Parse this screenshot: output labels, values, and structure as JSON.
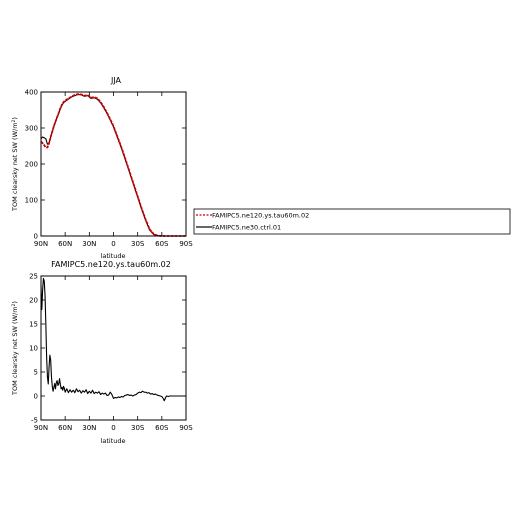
{
  "chart_data": [
    {
      "type": "line",
      "title": "JJA",
      "xlabel": "latitude",
      "ylabel": "TOM clearsky net SW (W/m",
      "ylabel_sup": "2",
      "ylabel_close": ")",
      "xlim": [
        90,
        -90
      ],
      "ylim": [
        0,
        400
      ],
      "xticks": [
        90,
        60,
        30,
        0,
        -30,
        -60,
        -90
      ],
      "xtick_labels": [
        "90N",
        "60N",
        "30N",
        "0",
        "30S",
        "60S",
        "90S"
      ],
      "yticks": [
        0,
        100,
        200,
        300,
        400
      ],
      "ytick_labels": [
        "0",
        "100",
        "200",
        "300",
        "400"
      ],
      "legend_position": "right",
      "series": [
        {
          "name": "FAMIPC5.ne120.ys.tau60m.02",
          "color": "#cc0000",
          "dash": "dashed",
          "x": [
            90,
            88,
            86,
            84,
            82,
            80,
            78,
            76,
            74,
            72,
            70,
            68,
            66,
            64,
            62,
            60,
            56,
            52,
            48,
            44,
            40,
            36,
            32,
            30,
            28,
            24,
            20,
            16,
            12,
            8,
            4,
            0,
            -5,
            -10,
            -15,
            -20,
            -25,
            -30,
            -35,
            -40,
            -45,
            -50,
            -55,
            -60,
            -62,
            -64,
            -66,
            -68,
            -70,
            -74,
            -78,
            -82,
            -86,
            -90
          ],
          "y": [
            262,
            258,
            252,
            246,
            246,
            258,
            275,
            290,
            305,
            318,
            330,
            342,
            355,
            365,
            372,
            376,
            382,
            387,
            392,
            394,
            393,
            390,
            391,
            388,
            384,
            386,
            382,
            372,
            358,
            342,
            324,
            305,
            275,
            245,
            212,
            178,
            144,
            110,
            76,
            45,
            18,
            5,
            1,
            0,
            0,
            0,
            0,
            0,
            0,
            0,
            0,
            0,
            0,
            0
          ]
        },
        {
          "name": "FAMIPC5.ne30.ctrl.01",
          "color": "#000000",
          "dash": "solid",
          "x": [
            90,
            88,
            86,
            84,
            82,
            80,
            78,
            76,
            74,
            72,
            70,
            68,
            66,
            64,
            62,
            60,
            56,
            52,
            48,
            44,
            40,
            36,
            32,
            30,
            28,
            24,
            20,
            16,
            12,
            8,
            4,
            0,
            -5,
            -10,
            -15,
            -20,
            -25,
            -30,
            -35,
            -40,
            -45,
            -50,
            -55,
            -60,
            -62,
            -64,
            -66,
            -68,
            -70,
            -74,
            -78,
            -82,
            -86,
            -90
          ],
          "y": [
            270,
            275,
            273,
            270,
            255,
            258,
            275,
            290,
            305,
            318,
            330,
            341,
            353,
            363,
            370,
            374,
            380,
            386,
            390,
            393,
            392,
            388,
            390,
            386,
            382,
            384,
            380,
            370,
            356,
            340,
            322,
            303,
            273,
            243,
            210,
            176,
            142,
            108,
            74,
            43,
            16,
            4,
            1,
            0,
            0,
            0,
            0,
            0,
            0,
            0,
            0,
            0,
            0,
            0
          ]
        }
      ]
    },
    {
      "type": "line",
      "title": "FAMIPC5.ne120.ys.tau60m.02",
      "xlabel": "latitude",
      "ylabel": "TOM clearsky net SW (W/m",
      "ylabel_sup": "2",
      "ylabel_close": ")",
      "xlim": [
        90,
        -90
      ],
      "ylim": [
        -5,
        25
      ],
      "xticks": [
        90,
        60,
        30,
        0,
        -30,
        -60,
        -90
      ],
      "xtick_labels": [
        "90N",
        "60N",
        "30N",
        "0",
        "30S",
        "60S",
        "90S"
      ],
      "yticks": [
        -5,
        0,
        5,
        10,
        15,
        20,
        25
      ],
      "ytick_labels": [
        "-5",
        "0",
        "5",
        "10",
        "15",
        "20",
        "25"
      ],
      "series": [
        {
          "color": "#000000",
          "dash": "solid",
          "x": [
            90,
            89,
            88,
            87,
            86,
            85,
            84,
            83,
            82,
            81,
            80,
            79,
            78,
            77,
            76,
            75,
            74,
            73,
            72,
            71,
            70,
            69,
            68,
            67,
            66,
            65,
            64,
            63,
            62,
            61,
            60,
            58,
            56,
            54,
            52,
            50,
            48,
            46,
            44,
            42,
            40,
            38,
            36,
            34,
            32,
            30,
            28,
            26,
            24,
            22,
            20,
            18,
            16,
            14,
            12,
            10,
            8,
            6,
            4,
            2,
            0,
            -2,
            -4,
            -6,
            -8,
            -10,
            -12,
            -14,
            -16,
            -18,
            -20,
            -22,
            -24,
            -26,
            -28,
            -30,
            -32,
            -34,
            -36,
            -38,
            -40,
            -42,
            -44,
            -46,
            -48,
            -50,
            -52,
            -54,
            -56,
            -58,
            -60,
            -62,
            -63,
            -64,
            -65,
            -66,
            -68,
            -70,
            -75,
            -80,
            -85,
            -90
          ],
          "y": [
            23,
            18,
            22,
            24.5,
            24,
            21,
            15,
            8,
            4,
            2.5,
            6,
            8.5,
            7.5,
            4,
            2,
            1,
            1.8,
            2.6,
            1.5,
            2.8,
            3.2,
            2.2,
            2.5,
            3.6,
            2.4,
            1.5,
            1.8,
            1.2,
            2.0,
            1.6,
            0.8,
            1.5,
            0.7,
            1.3,
            0.8,
            1.2,
            0.7,
            1.5,
            0.9,
            1.2,
            0.6,
            1.1,
            0.8,
            1.3,
            0.5,
            1.0,
            0.6,
            1.2,
            0.5,
            0.8,
            0.6,
            0.9,
            0.3,
            0.6,
            0.4,
            0.6,
            0.1,
            0.2,
            0.8,
            0.3,
            -0.5,
            -0.3,
            -0.4,
            -0.2,
            -0.3,
            -0.1,
            -0.2,
            0.1,
            0.2,
            0.3,
            0.1,
            0.2,
            0.0,
            0.2,
            0.3,
            0.6,
            0.8,
            0.7,
            1.0,
            0.8,
            0.8,
            0.6,
            0.7,
            0.4,
            0.5,
            0.3,
            0.4,
            0.2,
            0.1,
            0.0,
            -0.1,
            -0.6,
            -1.0,
            -0.6,
            -0.2,
            0.0,
            -0.1,
            0.0,
            0.0,
            0.0,
            0.0,
            0.0
          ]
        }
      ]
    }
  ]
}
